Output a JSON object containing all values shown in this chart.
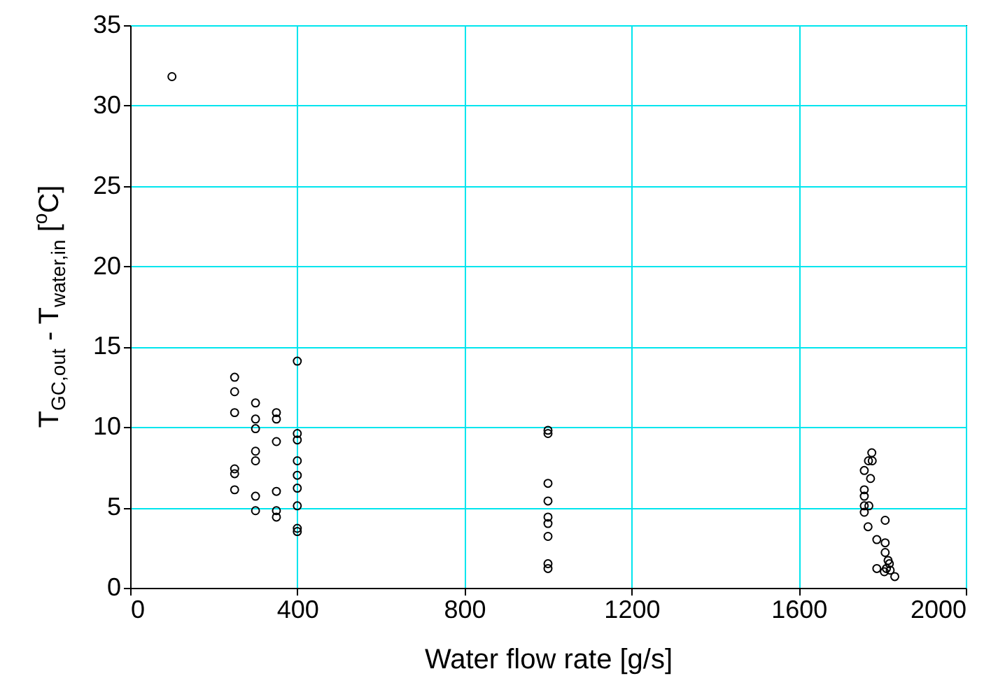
{
  "chart_data": {
    "type": "scatter",
    "xlabel": "Water flow rate [g/s]",
    "ylabel": "T$_{GC,out}$ - T$_{water,in}$ [$^{o}$C]",
    "xlim": [
      0,
      2000
    ],
    "xticks": [
      0,
      400,
      800,
      1200,
      1600,
      2000
    ],
    "ylim": [
      0,
      35
    ],
    "yticks": [
      0,
      5,
      10,
      15,
      20,
      25,
      30,
      35
    ],
    "grid": true,
    "marker": "circle",
    "x": [
      100,
      250,
      250,
      250,
      250,
      250,
      250,
      300,
      300,
      300,
      300,
      300,
      300,
      300,
      350,
      350,
      350,
      350,
      350,
      350,
      400,
      400,
      400,
      400,
      400,
      400,
      400,
      400,
      400,
      1000,
      1000,
      1000,
      1000,
      1000,
      1000,
      1000,
      1000,
      1000,
      1757,
      1757,
      1757,
      1757,
      1757,
      1766,
      1772,
      1767,
      1775,
      1776,
      1768,
      1787,
      1787,
      1807,
      1807,
      1807,
      1814,
      1810,
      1819,
      1805,
      1830,
      1817
    ],
    "series": [
      {
        "color": "#000000",
        "values": [
          31.8,
          13.1,
          12.2,
          10.9,
          7.4,
          7.1,
          6.1,
          11.5,
          10.5,
          9.9,
          8.5,
          7.9,
          5.7,
          4.8,
          10.9,
          10.5,
          9.1,
          6.0,
          4.8,
          4.4,
          14.1,
          9.6,
          9.2,
          7.9,
          7.0,
          6.2,
          5.1,
          3.7,
          3.5,
          9.8,
          9.6,
          6.5,
          5.4,
          4.4,
          4.0,
          3.2,
          1.5,
          1.2,
          4.7,
          5.1,
          5.7,
          6.1,
          7.3,
          3.8,
          6.8,
          7.9,
          8.4,
          7.9,
          5.1,
          3.0,
          1.2,
          4.2,
          2.8,
          2.2,
          1.7,
          1.2,
          1.1,
          1.0,
          0.7,
          1.5
        ]
      }
    ]
  }
}
